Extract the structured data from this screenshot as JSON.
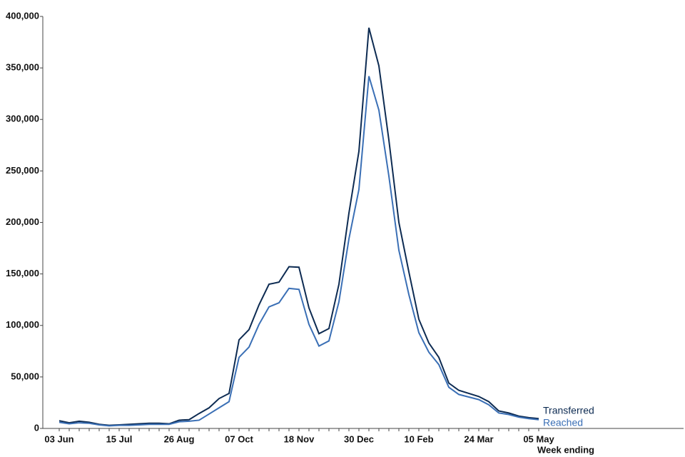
{
  "chart_data": {
    "type": "line",
    "x_label": "Week ending",
    "categories": [
      "03 Jun",
      null,
      null,
      null,
      null,
      null,
      "15 Jul",
      null,
      null,
      null,
      null,
      null,
      "26 Aug",
      null,
      null,
      null,
      null,
      null,
      "07 Oct",
      null,
      null,
      null,
      null,
      null,
      "18 Nov",
      null,
      null,
      null,
      null,
      null,
      "30 Dec",
      null,
      null,
      null,
      null,
      null,
      "10 Feb",
      null,
      null,
      null,
      null,
      null,
      "24 Mar",
      null,
      null,
      null,
      null,
      null,
      "05 May"
    ],
    "series": [
      {
        "name": "Transferred",
        "color": "#0d2b52",
        "values": [
          7500,
          5500,
          7000,
          6000,
          4000,
          3000,
          3500,
          4000,
          4500,
          5000,
          5000,
          4500,
          8000,
          8500,
          14500,
          20000,
          29000,
          34000,
          86000,
          96000,
          120000,
          140000,
          142000,
          157000,
          156500,
          117000,
          92000,
          97000,
          140000,
          209000,
          269000,
          389000,
          352000,
          280000,
          200000,
          152000,
          106000,
          83000,
          69000,
          44000,
          37000,
          34000,
          31000,
          26000,
          17000,
          15000,
          12000,
          10500,
          9500
        ]
      },
      {
        "name": "Reached",
        "color": "#3a6fb5",
        "values": [
          6000,
          4500,
          5500,
          5000,
          3500,
          2500,
          3000,
          3000,
          3500,
          4000,
          4000,
          4000,
          6500,
          7000,
          8000,
          14000,
          20000,
          26000,
          69000,
          79000,
          101000,
          118000,
          122000,
          136000,
          135000,
          101000,
          80000,
          85000,
          123000,
          184000,
          232000,
          342000,
          309000,
          245000,
          173000,
          130000,
          93000,
          74000,
          62000,
          40000,
          33000,
          30500,
          28000,
          23000,
          15000,
          13500,
          11000,
          9500,
          8500
        ]
      }
    ],
    "ylim": [
      0,
      400000
    ],
    "yticks": [
      0,
      {
        "value": 50000,
        "label": "50,000"
      },
      {
        "value": 100000,
        "label": "100,000"
      },
      {
        "value": 150000,
        "label": "150,000"
      },
      {
        "value": 200000,
        "label": "200,000"
      },
      {
        "value": 250000,
        "label": "250,000"
      },
      {
        "value": 300000,
        "label": "300,000"
      },
      {
        "value": 350000,
        "label": "350,000"
      },
      {
        "value": 400000,
        "label": "400,000"
      }
    ],
    "grid": false
  }
}
